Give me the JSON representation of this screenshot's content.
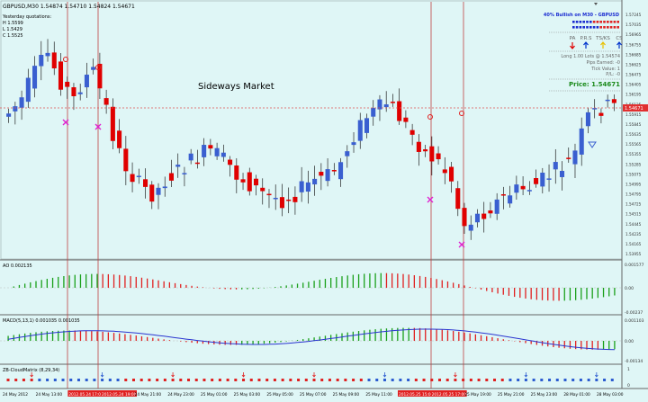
{
  "header": {
    "symbol_line": "GBPUSD,M30  1.54874 1.54710 1.54824 1.54671",
    "yesterday_title": "Yesterday quotations:",
    "high": "H 1.5599",
    "low": "L 1.5429",
    "close": "C 1.5525"
  },
  "annotation": "Sideways Market",
  "panel": {
    "bullish_title": "40% Bullish on M30 - GBPUSD",
    "columns": [
      "PA",
      "P.R.S",
      "TS/KS",
      "CS"
    ],
    "arrow_colors": [
      "#e00000",
      "#0033cc",
      "#e8c000",
      "#0033cc"
    ],
    "arrow_dirs": [
      "down",
      "up",
      "up",
      "up"
    ],
    "lots_line": "Long 1.00 Lots @ 1.54574",
    "pips_line": "Pips Earned: -0",
    "tick_line": "Tick Value: 1",
    "pl_line": "P/L: -0",
    "price_label": "Price: 1.54671"
  },
  "price_axis": [
    "1.57245",
    "1.57035",
    "1.56965",
    "1.56755",
    "1.56685",
    "1.56625",
    "1.56475",
    "1.56405",
    "1.56195",
    "1.56125",
    "1.55915",
    "1.55845",
    "1.55635",
    "1.55565",
    "1.55355",
    "1.55285",
    "1.55075",
    "1.54995",
    "1.54795",
    "1.54725",
    "1.54515",
    "1.54445",
    "1.54235",
    "1.54165",
    "1.53955"
  ],
  "current_price_tag": "1.54671",
  "ao": {
    "title": "AO 0.002135",
    "axis": [
      "0.001577",
      "0.00",
      "-0.00237"
    ]
  },
  "macd": {
    "title": "MACD(5,13,1) 0.001035 0.001035",
    "axis": [
      "0.001103",
      "0.00",
      "-0.00134"
    ]
  },
  "cloud": {
    "title": "ZB-CloudMatrix (8,29,34)",
    "axis": [
      "1",
      "0"
    ]
  },
  "time_axis": [
    "24 May 2012",
    "24 May 13:00",
    "2012.05.24 17:00",
    "2012.05.24 19:00",
    "24 May 21:00",
    "24 May 23:00",
    "25 May 01:00",
    "25 May 03:00",
    "25 May 05:00",
    "25 May 07:00",
    "25 May 09:00",
    "25 May 11:00",
    "2012.05.25 15:00",
    "2012.05.25 17:00",
    "25 May 19:00",
    "25 May 21:00",
    "25 May 23:00",
    "28 May 01:00",
    "28 May 03:00"
  ]
}
